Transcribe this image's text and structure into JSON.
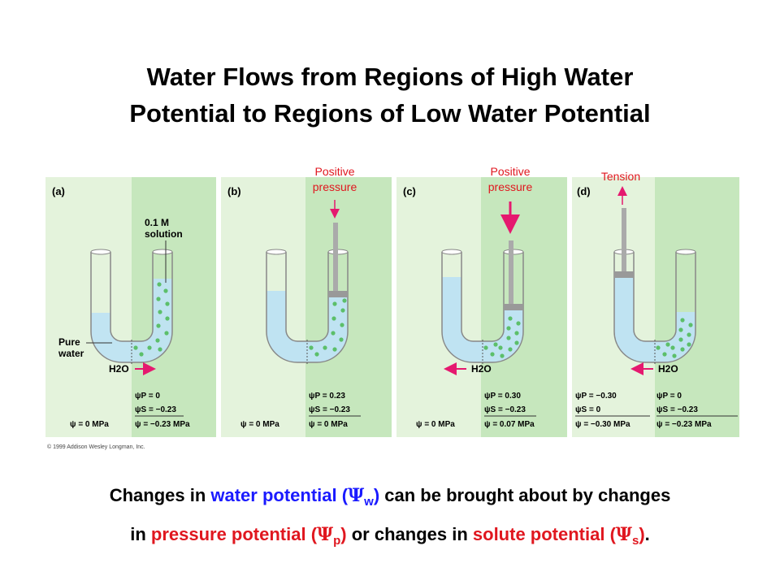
{
  "title": {
    "line1": "Water Flows from Regions of High Water",
    "line2": "Potential to Regions of Low Water Potential"
  },
  "figure": {
    "panels": [
      {
        "letter": "(a)",
        "top_label": "",
        "left_labels": [
          "Pure",
          "water"
        ],
        "right_labels": [
          "0.1 M",
          "solution"
        ],
        "h2o": "H2O",
        "left_values": {
          "psi": "ψ = 0 MPa"
        },
        "right_values": {
          "psi_p": "ψP =    0",
          "psi_s": "ψS = −0.23",
          "psi": "ψ  = −0.23 MPa"
        }
      },
      {
        "letter": "(b)",
        "top_label": [
          "Positive",
          "pressure"
        ],
        "left_values": {
          "psi": "ψ = 0 MPa"
        },
        "right_values": {
          "psi_p": "ψP =  0.23",
          "psi_s": "ψS = −0.23",
          "psi": "ψ  =     0 MPa"
        }
      },
      {
        "letter": "(c)",
        "top_label": [
          "Positive",
          "pressure"
        ],
        "h2o": "H2O",
        "left_values": {
          "psi": "ψ = 0 MPa"
        },
        "right_values": {
          "psi_p": "ψP =  0.30",
          "psi_s": "ψS = −0.23",
          "psi": "ψ  =  0.07 MPa"
        }
      },
      {
        "letter": "(d)",
        "top_label": [
          "Tension"
        ],
        "h2o": "H2O",
        "left_values": {
          "psi_p": "ψP = −0.30",
          "psi_s": "ψS =     0",
          "psi": "ψ  = −0.30 MPa"
        },
        "right_values": {
          "psi_p": "ψP =    0",
          "psi_s": "ψS = −0.23",
          "psi": "ψ  = −0.23 MPa"
        }
      }
    ],
    "copyright": "© 1999 Addison Wesley Longman, Inc.",
    "colors": {
      "left_bg": "#e4f3dc",
      "right_bg": "#c6e7bd",
      "water": "#bfe3f2",
      "dots": "#5cbf6a",
      "arrow": "#e5196f",
      "label_red": "#e0171f"
    }
  },
  "caption": {
    "l1_a": "Changes in ",
    "l1_wp": "water potential (",
    "psi": "Ψ",
    "sub_w": "w",
    "l1_close": ")",
    "l1_b": " can be brought about by changes",
    "l2_a": "in ",
    "l2_pp": "pressure potential (",
    "sub_p": "p",
    "l2_close": ")",
    "l2_b": " or changes in ",
    "l2_sp": "solute potential (",
    "sub_s": "s",
    "l2_end": ")",
    "l2_period": "."
  }
}
